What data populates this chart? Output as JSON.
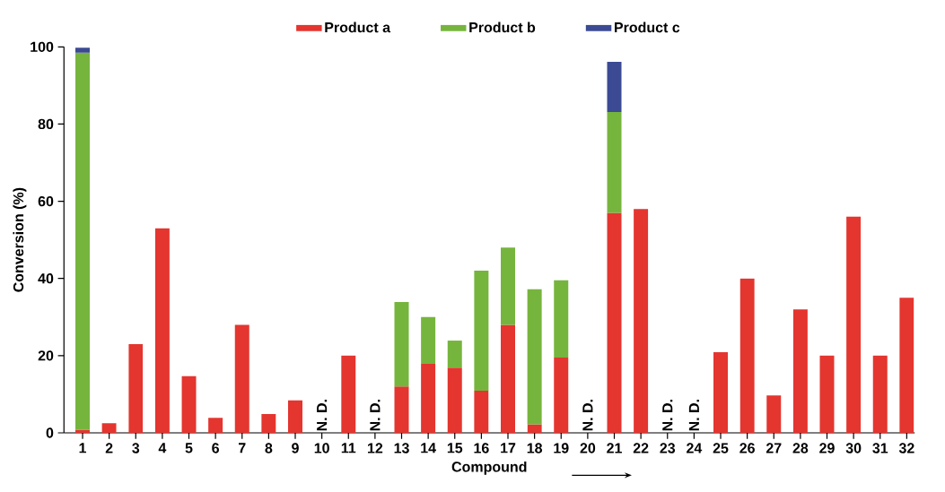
{
  "chart_data": {
    "type": "bar",
    "stacked": true,
    "xlabel": "Compound",
    "ylabel": "Conversion (%)",
    "categories": [
      "1",
      "2",
      "3",
      "4",
      "5",
      "6",
      "7",
      "8",
      "9",
      "10",
      "11",
      "12",
      "13",
      "14",
      "15",
      "16",
      "17",
      "18",
      "19",
      "20",
      "21",
      "22",
      "23",
      "24",
      "25",
      "26",
      "27",
      "28",
      "29",
      "30",
      "31",
      "32"
    ],
    "series": [
      {
        "name": "Product a",
        "color": "#e4352f",
        "values": [
          0.8,
          2.5,
          23,
          53,
          14.7,
          3.9,
          28,
          4.9,
          8.4,
          null,
          20,
          null,
          12,
          17.9,
          16.9,
          10.9,
          28,
          2.2,
          19.5,
          null,
          57,
          58,
          null,
          null,
          20.9,
          40,
          9.7,
          32,
          20,
          56,
          20,
          35
        ]
      },
      {
        "name": "Product b",
        "color": "#76b53d",
        "values": [
          97.7,
          null,
          null,
          null,
          null,
          null,
          null,
          null,
          null,
          null,
          null,
          null,
          21.9,
          12.1,
          7,
          31.1,
          20,
          35,
          20,
          null,
          26.1,
          null,
          null,
          null,
          null,
          null,
          null,
          null,
          null,
          null,
          null,
          null
        ]
      },
      {
        "name": "Product c",
        "color": "#3b4a93",
        "values": [
          1.3,
          null,
          null,
          null,
          null,
          null,
          null,
          null,
          null,
          null,
          null,
          null,
          null,
          null,
          null,
          null,
          null,
          null,
          null,
          null,
          13,
          null,
          null,
          null,
          null,
          null,
          null,
          null,
          null,
          null,
          null,
          null
        ]
      }
    ],
    "ylim": [
      0,
      100
    ],
    "yticks": [
      0,
      20,
      40,
      60,
      80,
      100
    ],
    "legend": "top",
    "annotations": [
      "N. D.",
      "N. D.",
      "N. D.",
      "N. D.",
      "N. D."
    ]
  }
}
